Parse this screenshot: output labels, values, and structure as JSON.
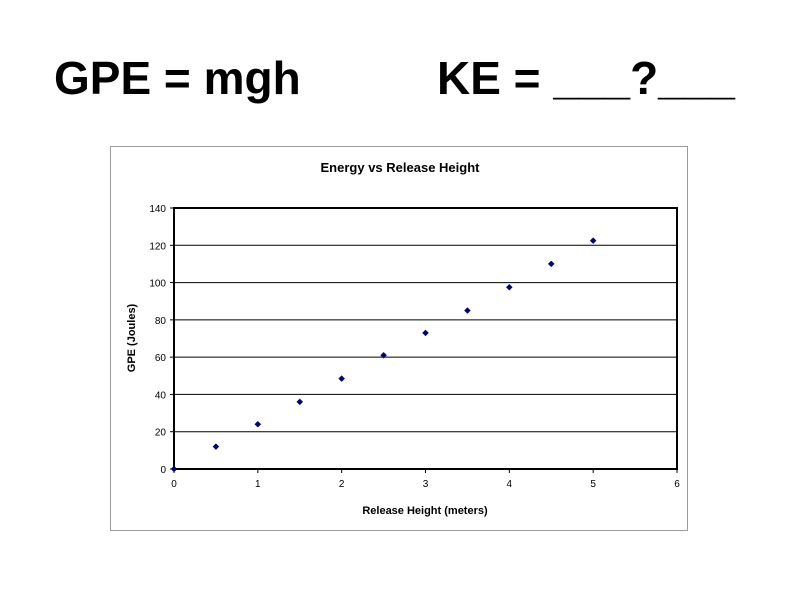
{
  "slide": {
    "formula_left": "GPE = mgh",
    "formula_right": "KE = ___?___"
  },
  "chart_data": {
    "type": "scatter",
    "title": "Energy vs Release Height",
    "xlabel": "Release Height (meters)",
    "ylabel": "GPE (Joules)",
    "xlim": [
      0,
      6
    ],
    "ylim": [
      0,
      140
    ],
    "xticks": [
      0,
      1,
      2,
      3,
      4,
      5,
      6
    ],
    "yticks": [
      0,
      20,
      40,
      60,
      80,
      100,
      120,
      140
    ],
    "grid": "horizontal",
    "marker_color": "#000080",
    "x": [
      0,
      0.5,
      1,
      1.5,
      2,
      2.5,
      3,
      3.5,
      4,
      4.5,
      5
    ],
    "y": [
      0,
      12,
      24,
      36,
      48.5,
      61,
      73,
      85,
      97.5,
      110,
      122.5
    ]
  }
}
